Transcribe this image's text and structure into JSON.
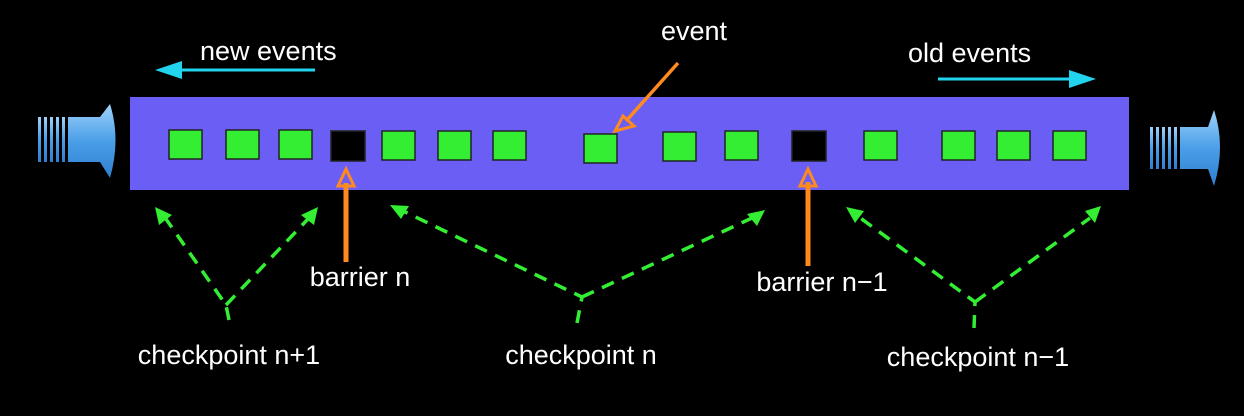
{
  "labels": {
    "new_events": "new events",
    "old_events": "old events",
    "event": "event",
    "barrier_n": "barrier n",
    "barrier_n_minus_1": "barrier n−1",
    "checkpoint_n_plus_1": "checkpoint n+1",
    "checkpoint_n": "checkpoint n",
    "checkpoint_n_minus_1": "checkpoint n−1"
  },
  "colors": {
    "background": "#000000",
    "stream": "#6a5ef5",
    "event": "#33ee33",
    "barrier": "#000000",
    "direction_arrow": "#22d3ee",
    "annotation_arrow": "#ff8a1e",
    "checkpoint_arrow": "#33ee33",
    "flow_arrow": "#5aaef0"
  }
}
